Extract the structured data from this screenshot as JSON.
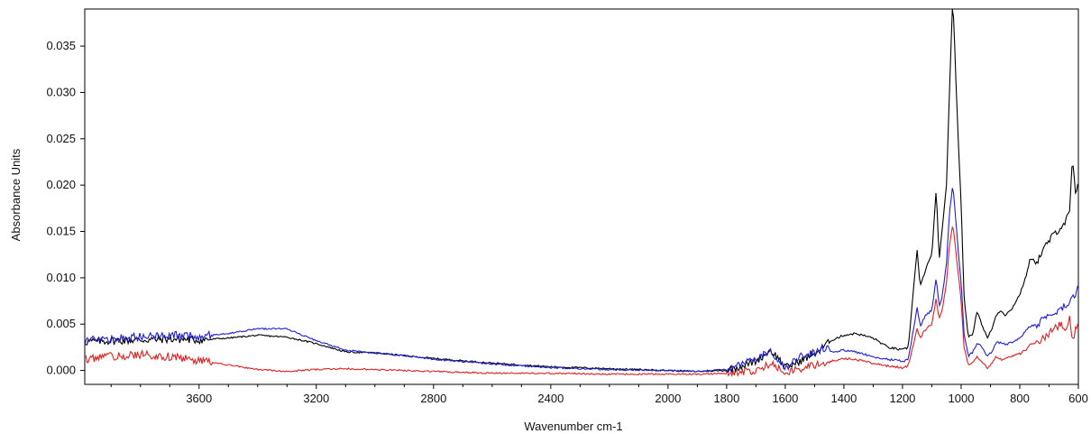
{
  "chart_data": {
    "type": "line",
    "title": "",
    "xlabel": "Wavenumber cm-1",
    "ylabel": "Absorbance Units",
    "xlim": [
      3990,
      600
    ],
    "ylim": [
      -0.0015,
      0.039
    ],
    "x_reversed": true,
    "grid": false,
    "x_ticks": [
      3600,
      3200,
      2800,
      2400,
      2000,
      1800,
      1600,
      1400,
      1200,
      1000,
      800,
      600
    ],
    "y_ticks": [
      0.0,
      0.005,
      0.01,
      0.015,
      0.02,
      0.025,
      0.03,
      0.035
    ],
    "y_tick_labels": [
      "0.000",
      "0.005",
      "0.010",
      "0.015",
      "0.020",
      "0.025",
      "0.030",
      "0.035"
    ],
    "series": [
      {
        "color": "#000000",
        "x": [
          3990,
          3900,
          3800,
          3700,
          3600,
          3500,
          3400,
          3300,
          3200,
          3100,
          3000,
          2900,
          2800,
          2600,
          2400,
          2200,
          2000,
          1900,
          1800,
          1700,
          1650,
          1620,
          1600,
          1550,
          1500,
          1460,
          1440,
          1400,
          1360,
          1300,
          1250,
          1200,
          1180,
          1165,
          1150,
          1140,
          1120,
          1100,
          1085,
          1075,
          1065,
          1050,
          1040,
          1030,
          1025,
          1020,
          1010,
          1000,
          990,
          975,
          960,
          945,
          930,
          910,
          895,
          880,
          865,
          850,
          830,
          800,
          780,
          765,
          740,
          720,
          700,
          680,
          660,
          645,
          630,
          620,
          610,
          600
        ],
        "y": [
          0.0031,
          0.0032,
          0.0033,
          0.0034,
          0.0033,
          0.0035,
          0.0038,
          0.0036,
          0.0029,
          0.002,
          0.0019,
          0.0016,
          0.0013,
          0.0008,
          0.0004,
          0.0002,
          0.0,
          -0.0001,
          0.0,
          0.001,
          0.0022,
          0.0012,
          0.0003,
          0.001,
          0.0018,
          0.0028,
          0.0033,
          0.0038,
          0.004,
          0.0035,
          0.0025,
          0.0022,
          0.0025,
          0.008,
          0.013,
          0.009,
          0.011,
          0.0125,
          0.0195,
          0.012,
          0.015,
          0.02,
          0.03,
          0.039,
          0.038,
          0.033,
          0.025,
          0.018,
          0.008,
          0.0035,
          0.004,
          0.0065,
          0.005,
          0.0035,
          0.0045,
          0.006,
          0.0065,
          0.006,
          0.0065,
          0.0082,
          0.01,
          0.012,
          0.0118,
          0.013,
          0.014,
          0.0148,
          0.0155,
          0.016,
          0.017,
          0.023,
          0.019,
          0.02
        ],
        "noise_region": [
          1800,
          3990
        ]
      },
      {
        "color": "#1f1fd6",
        "x": [
          3990,
          3900,
          3800,
          3700,
          3600,
          3500,
          3400,
          3300,
          3200,
          3100,
          3000,
          2900,
          2800,
          2600,
          2400,
          2200,
          2000,
          1900,
          1800,
          1700,
          1650,
          1620,
          1600,
          1550,
          1500,
          1460,
          1440,
          1400,
          1360,
          1300,
          1250,
          1200,
          1180,
          1165,
          1150,
          1140,
          1120,
          1100,
          1085,
          1075,
          1065,
          1050,
          1040,
          1030,
          1025,
          1020,
          1010,
          1000,
          990,
          975,
          960,
          945,
          930,
          910,
          895,
          880,
          865,
          850,
          830,
          800,
          780,
          765,
          740,
          720,
          700,
          680,
          660,
          645,
          630,
          620,
          610,
          600
        ],
        "y": [
          0.0032,
          0.0034,
          0.0036,
          0.0038,
          0.0037,
          0.004,
          0.0045,
          0.0045,
          0.0032,
          0.0022,
          0.0019,
          0.0016,
          0.0012,
          0.0007,
          0.0003,
          0.0001,
          0.0,
          -0.0001,
          0.0001,
          0.0012,
          0.0022,
          0.001,
          0.0002,
          0.0015,
          0.002,
          0.0025,
          0.002,
          0.0022,
          0.002,
          0.0015,
          0.0012,
          0.001,
          0.0012,
          0.004,
          0.0068,
          0.0048,
          0.006,
          0.0065,
          0.01,
          0.0068,
          0.008,
          0.0115,
          0.017,
          0.0196,
          0.019,
          0.017,
          0.013,
          0.0095,
          0.004,
          0.0015,
          0.002,
          0.003,
          0.0025,
          0.0015,
          0.002,
          0.003,
          0.003,
          0.0028,
          0.003,
          0.0035,
          0.0042,
          0.0048,
          0.005,
          0.0055,
          0.006,
          0.0062,
          0.0065,
          0.007,
          0.0075,
          0.0085,
          0.008,
          0.009
        ],
        "noise_region": [
          1800,
          3990
        ]
      },
      {
        "color": "#e02020",
        "x": [
          3990,
          3900,
          3800,
          3700,
          3600,
          3500,
          3400,
          3300,
          3200,
          3100,
          3000,
          2900,
          2800,
          2600,
          2400,
          2200,
          2000,
          1900,
          1800,
          1700,
          1650,
          1620,
          1600,
          1550,
          1500,
          1460,
          1440,
          1400,
          1360,
          1300,
          1250,
          1200,
          1180,
          1165,
          1150,
          1140,
          1120,
          1100,
          1085,
          1075,
          1065,
          1050,
          1040,
          1030,
          1025,
          1020,
          1010,
          1000,
          990,
          975,
          960,
          945,
          930,
          910,
          895,
          880,
          865,
          850,
          830,
          800,
          780,
          765,
          740,
          720,
          700,
          680,
          660,
          645,
          630,
          620,
          610,
          600
        ],
        "y": [
          0.0012,
          0.0015,
          0.0017,
          0.0015,
          0.001,
          0.0006,
          0.0001,
          -0.0001,
          0.0001,
          0.0002,
          0.0001,
          0.0,
          -0.0001,
          -0.0003,
          -0.0003,
          -0.0004,
          -0.0004,
          -0.0004,
          -0.0003,
          0.0,
          0.0007,
          0.0003,
          -0.0002,
          0.0002,
          0.0006,
          0.0008,
          0.001,
          0.0013,
          0.0012,
          0.0008,
          0.0005,
          0.0003,
          0.0005,
          0.0025,
          0.0045,
          0.0035,
          0.0045,
          0.005,
          0.0078,
          0.0055,
          0.0065,
          0.0095,
          0.0135,
          0.0155,
          0.015,
          0.0135,
          0.0105,
          0.0075,
          0.0025,
          0.0005,
          0.0008,
          0.0015,
          0.001,
          0.0003,
          0.0008,
          0.0015,
          0.0012,
          0.0012,
          0.0015,
          0.0018,
          0.0022,
          0.0028,
          0.003,
          0.0035,
          0.004,
          0.0045,
          0.005,
          0.004,
          0.0055,
          0.003,
          0.0045,
          0.0055
        ],
        "noise_region": [
          1800,
          3990
        ]
      }
    ]
  }
}
